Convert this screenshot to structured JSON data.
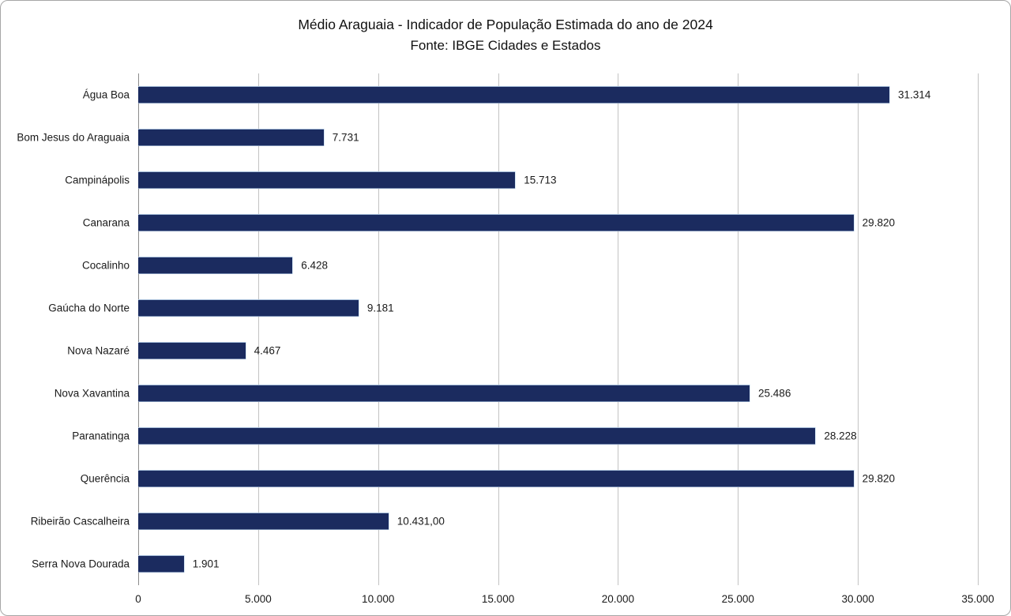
{
  "header": {
    "title": "Médio Araguaia - Indicador de População Estimada do ano de 2024",
    "subtitle": "Fonte: IBGE Cidades e Estados"
  },
  "chart_data": {
    "type": "bar",
    "orientation": "horizontal",
    "title": "Médio Araguaia - Indicador de População Estimada do ano de 2024",
    "subtitle": "Fonte: IBGE Cidades e Estados",
    "categories": [
      "Água Boa",
      "Bom Jesus do Araguaia",
      "Campinápolis",
      "Canarana",
      "Cocalinho",
      "Gaúcha do Norte",
      "Nova Nazaré",
      "Nova Xavantina",
      "Paranatinga",
      "Querência",
      "Ribeirão Cascalheira",
      "Serra Nova Dourada"
    ],
    "values": [
      31314,
      7731,
      15713,
      29820,
      6428,
      9181,
      4467,
      25486,
      28228,
      29820,
      10431,
      1901
    ],
    "value_labels": [
      "31.314",
      "7.731",
      "15.713",
      "29.820",
      "6.428",
      "9.181",
      "4.467",
      "25.486",
      "28.228",
      "29.820",
      "10.431,00",
      "1.901"
    ],
    "xlim": [
      0,
      35000
    ],
    "x_ticks": [
      0,
      5000,
      10000,
      15000,
      20000,
      25000,
      30000,
      35000
    ],
    "x_tick_labels": [
      "0",
      "5.000",
      "10.000",
      "15.000",
      "20.000",
      "25.000",
      "30.000",
      "35.000"
    ],
    "grid": true,
    "legend": "none",
    "bar_color": "#1B2B5F",
    "bar_edge_color": "#BDD7EE",
    "gridline_color": "#C3C3C3",
    "axis_line_color": "#8C8C8C",
    "xlabel": "",
    "ylabel": ""
  }
}
